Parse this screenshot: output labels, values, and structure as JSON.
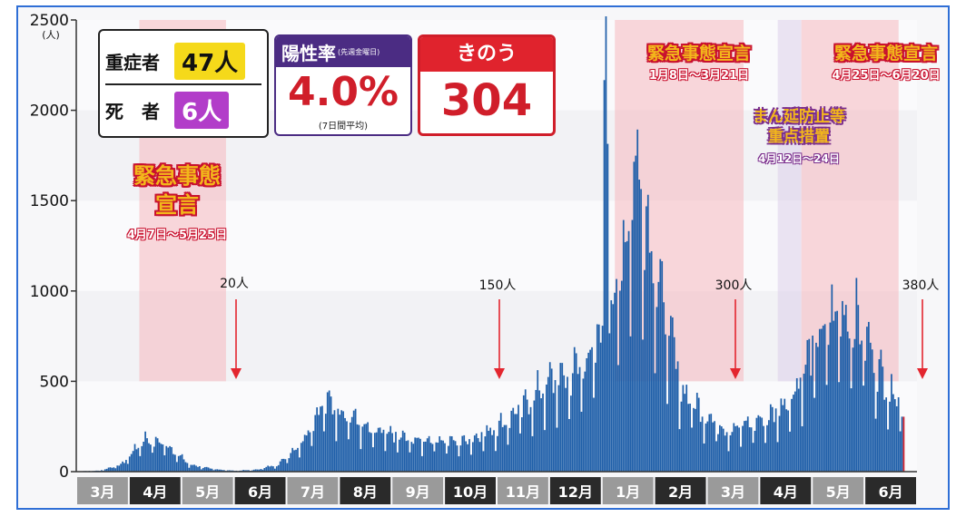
{
  "stats": {
    "severe_label": "重症者",
    "severe_value": "47人",
    "death_label": "死　者",
    "death_value": "6人",
    "colors": {
      "severe_bg": "#f5d91a",
      "death_bg": "#b23dc9"
    }
  },
  "positivity": {
    "title": "陽性率",
    "subtitle": "(先週金曜日)",
    "value": "4.0%",
    "note": "(7日間平均)"
  },
  "yesterday": {
    "title": "きのう",
    "value": "304人"
  },
  "emergencies": [
    {
      "title_line1": "緊急事態",
      "title_line2": "宣言",
      "dates": "4月7日～5月25日"
    },
    {
      "title_line1": "緊急事態宣言",
      "title_line2": "",
      "dates": "1月8日～3月21日"
    },
    {
      "title_line1": "緊急事態宣言",
      "title_line2": "",
      "dates": "4月25日～6月20日"
    }
  ],
  "priority": {
    "line1": "まん延防止等",
    "line2": "重点措置",
    "dates": "4月12日～24日"
  },
  "annotations": [
    "20人",
    "150人",
    "300人",
    "380人"
  ],
  "chart_data": {
    "type": "bar",
    "ylim": [
      0,
      2500
    ],
    "yticks": [
      "0",
      "500",
      "1000",
      "1500",
      "2000",
      "2500"
    ],
    "yunit": "(人)",
    "months": [
      "3月",
      "4月",
      "5月",
      "6月",
      "7月",
      "8月",
      "9月",
      "10月",
      "11月",
      "12月",
      "1月",
      "2月",
      "3月",
      "4月",
      "5月",
      "6月"
    ],
    "month_bands": [
      "light",
      "dark",
      "light",
      "dark",
      "light",
      "dark",
      "light",
      "dark",
      "light",
      "dark",
      "light",
      "dark",
      "light",
      "dark",
      "light",
      "dark"
    ],
    "trend_by_half_month": [
      2,
      5,
      40,
      180,
      150,
      40,
      15,
      5,
      10,
      40,
      160,
      380,
      330,
      220,
      200,
      170,
      180,
      160,
      200,
      260,
      360,
      480,
      520,
      640,
      900,
      1700,
      1000,
      450,
      320,
      230,
      260,
      300,
      430,
      700,
      880,
      800,
      500,
      360
    ],
    "peak_value": 2520,
    "yesterday_value": 304,
    "colors": {
      "bar": "#1f5fa9",
      "emergency": "#f6b8bd",
      "priority": "#ddd0ea"
    }
  }
}
